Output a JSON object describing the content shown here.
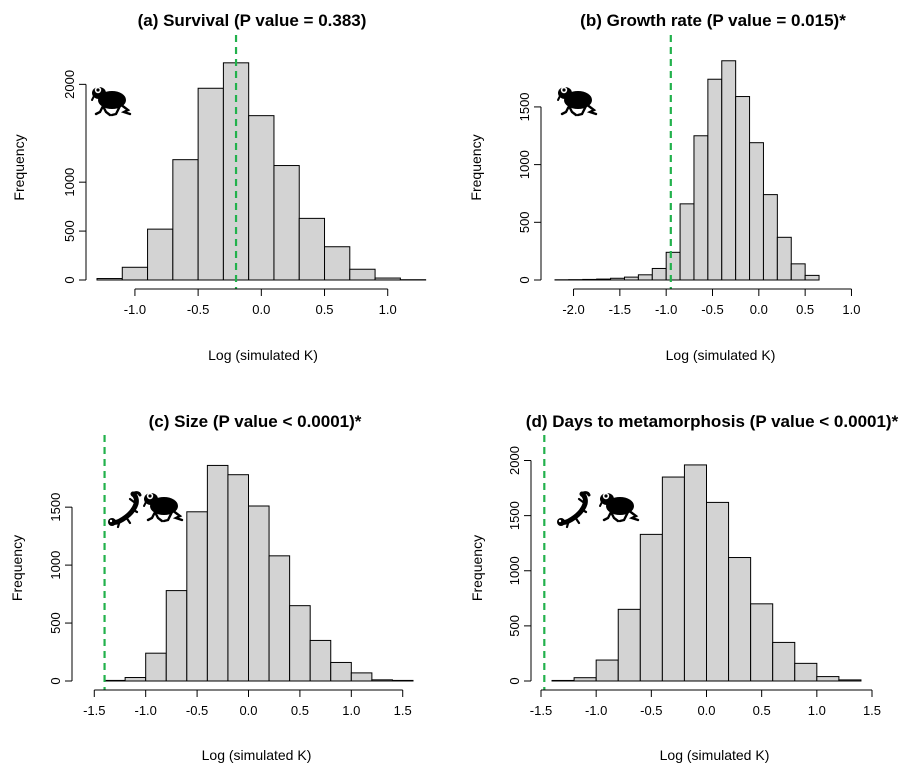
{
  "chart_data": [
    {
      "type": "bar",
      "panel": "a",
      "title": "(a) Survival (P value = 0.383)",
      "xlabel": "Log (simulated K)",
      "ylabel": "Frequency",
      "icons": [
        "frog-icon"
      ],
      "bin_width": 0.2,
      "bin_starts": [
        -1.3,
        -1.1,
        -0.9,
        -0.7,
        -0.5,
        -0.3,
        -0.1,
        0.1,
        0.3,
        0.5,
        0.7,
        0.9,
        1.1
      ],
      "values": [
        15,
        130,
        520,
        1230,
        1960,
        2220,
        1680,
        1170,
        630,
        340,
        110,
        20,
        3
      ],
      "observed_x": -0.2,
      "xlim": [
        -1.3,
        1.2
      ],
      "ylim": [
        0,
        2300
      ],
      "xticks": [
        -1.0,
        -0.5,
        0.0,
        0.5,
        1.0
      ],
      "xtick_labels": [
        "-1.0",
        "-0.5",
        "0.0",
        "0.5",
        "1.0"
      ],
      "yticks": [
        0,
        500,
        1000,
        2000
      ],
      "ytick_labels": [
        "0",
        "500",
        "1000",
        "2000"
      ],
      "grid": false
    },
    {
      "type": "bar",
      "panel": "b",
      "title": "(b) Growth rate (P value = 0.015)*",
      "xlabel": "Log (simulated K)",
      "ylabel": "Frequency",
      "icons": [
        "frog-icon"
      ],
      "bin_width": 0.15,
      "bin_starts": [
        -2.2,
        -2.05,
        -1.9,
        -1.75,
        -1.6,
        -1.45,
        -1.3,
        -1.15,
        -1.0,
        -0.85,
        -0.7,
        -0.55,
        -0.4,
        -0.25,
        -0.1,
        0.05,
        0.2,
        0.35,
        0.5,
        0.65,
        0.8,
        0.95,
        1.1
      ],
      "values": [
        2,
        3,
        5,
        8,
        15,
        25,
        45,
        100,
        240,
        660,
        1250,
        1740,
        1900,
        1590,
        1190,
        740,
        370,
        140,
        40,
        0,
        0,
        0,
        0
      ],
      "observed_x": -0.95,
      "xlim": [
        -2.2,
        1.2
      ],
      "ylim": [
        0,
        1950
      ],
      "xticks": [
        -2.0,
        -1.5,
        -1.0,
        -0.5,
        0.0,
        0.5,
        1.0
      ],
      "xtick_labels": [
        "-2.0",
        "-1.5",
        "-1.0",
        "-0.5",
        "0.0",
        "0.5",
        "1.0"
      ],
      "yticks": [
        0,
        500,
        1000,
        1500
      ],
      "ytick_labels": [
        "0",
        "500",
        "1000",
        "1500"
      ],
      "grid": false
    },
    {
      "type": "bar",
      "panel": "c",
      "title": "(c) Size (P value < 0.0001)*",
      "xlabel": "Log (simulated K)",
      "ylabel": "Frequency",
      "icons": [
        "salamander-icon",
        "frog-icon"
      ],
      "bin_width": 0.2,
      "bin_starts": [
        -1.4,
        -1.2,
        -1.0,
        -0.8,
        -0.6,
        -0.4,
        -0.2,
        0.0,
        0.2,
        0.4,
        0.6,
        0.8,
        1.0,
        1.2,
        1.4
      ],
      "values": [
        5,
        30,
        240,
        780,
        1460,
        1860,
        1780,
        1510,
        1080,
        650,
        350,
        160,
        70,
        10,
        5
      ],
      "observed_x": -1.4,
      "xlim": [
        -1.6,
        1.6
      ],
      "ylim": [
        0,
        1950
      ],
      "xticks": [
        -1.5,
        -1.0,
        -0.5,
        0.0,
        0.5,
        1.0,
        1.5
      ],
      "xtick_labels": [
        "-1.5",
        "-1.0",
        "-0.5",
        "0.0",
        "0.5",
        "1.0",
        "1.5"
      ],
      "yticks": [
        0,
        500,
        1000,
        1500
      ],
      "ytick_labels": [
        "0",
        "500",
        "1000",
        "1500"
      ],
      "grid": false
    },
    {
      "type": "bar",
      "panel": "d",
      "title": "(d) Days to metamorphosis (P value < 0.0001)*",
      "xlabel": "Log (simulated K)",
      "ylabel": "Frequency",
      "icons": [
        "salamander-icon",
        "frog-icon"
      ],
      "bin_width": 0.2,
      "bin_starts": [
        -1.4,
        -1.2,
        -1.0,
        -0.8,
        -0.6,
        -0.4,
        -0.2,
        0.0,
        0.2,
        0.4,
        0.6,
        0.8,
        1.0,
        1.2
      ],
      "values": [
        5,
        30,
        190,
        650,
        1330,
        1850,
        1960,
        1620,
        1120,
        700,
        350,
        160,
        40,
        10
      ],
      "observed_x": -1.47,
      "xlim": [
        -1.5,
        1.5
      ],
      "ylim": [
        0,
        2050
      ],
      "xticks": [
        -1.5,
        -1.0,
        -0.5,
        0.0,
        0.5,
        1.0,
        1.5
      ],
      "xtick_labels": [
        "-1.5",
        "-1.0",
        "-0.5",
        "0.0",
        "0.5",
        "1.0",
        "1.5"
      ],
      "yticks": [
        0,
        500,
        1000,
        1500,
        2000
      ],
      "ytick_labels": [
        "0",
        "500",
        "1000",
        "1500",
        "2000"
      ],
      "grid": false
    }
  ]
}
